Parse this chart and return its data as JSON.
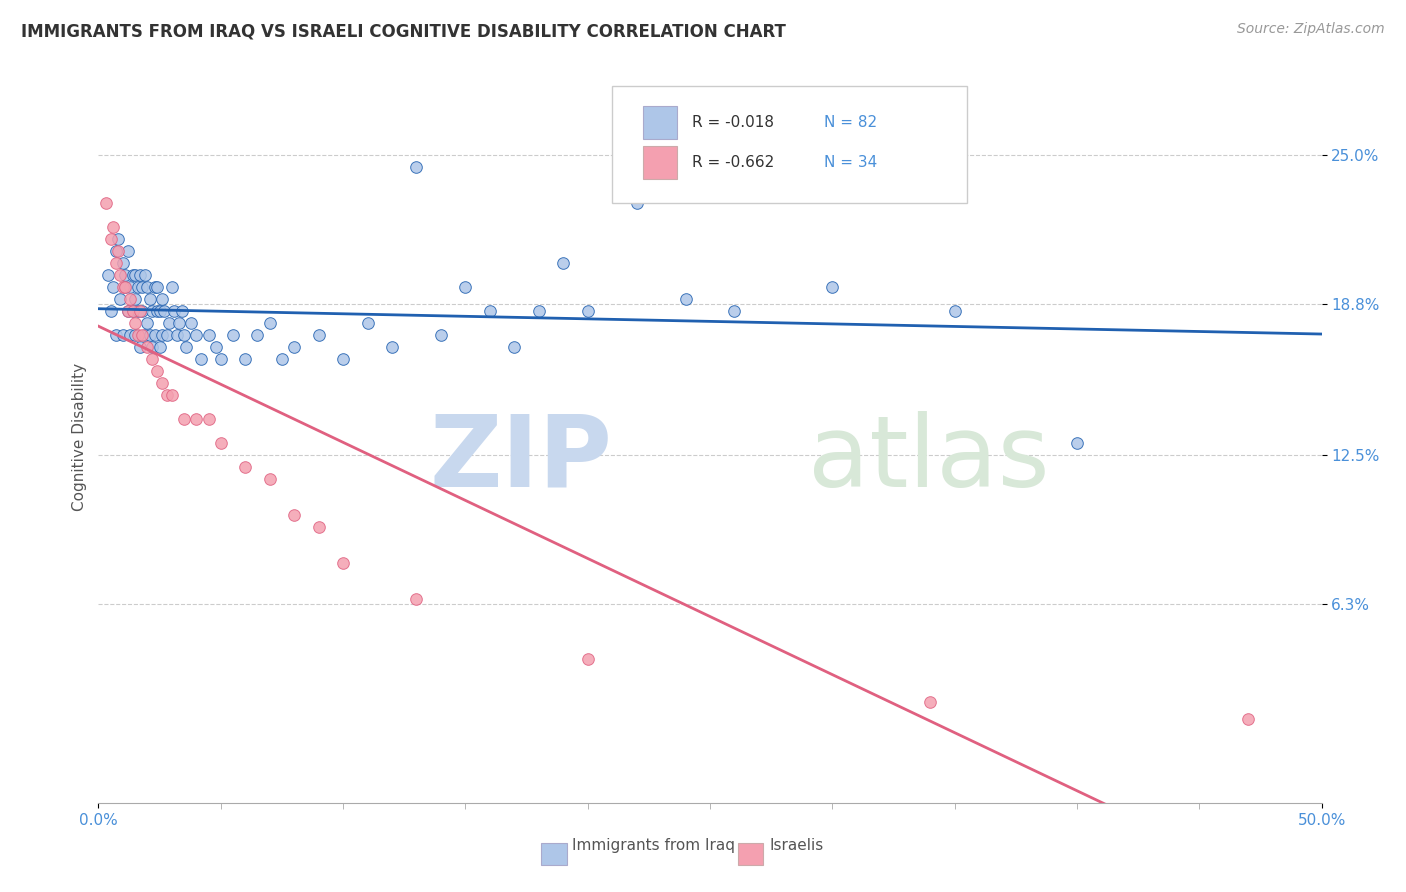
{
  "title": "IMMIGRANTS FROM IRAQ VS ISRAELI COGNITIVE DISABILITY CORRELATION CHART",
  "source_text": "Source: ZipAtlas.com",
  "ylabel": "Cognitive Disability",
  "xlim": [
    0.0,
    0.5
  ],
  "ylim": [
    -0.02,
    0.285
  ],
  "grid_color": "#cccccc",
  "background_color": "#ffffff",
  "watermark_zip": "ZIP",
  "watermark_atlas": "atlas",
  "legend_labels": [
    "Immigrants from Iraq",
    "Israelis"
  ],
  "series1_R": "-0.018",
  "series1_N": "82",
  "series2_R": "-0.662",
  "series2_N": "34",
  "series1_color": "#aec6e8",
  "series2_color": "#f4a0b0",
  "series1_line_color": "#2060b0",
  "series2_line_color": "#e06080",
  "ytick_vals": [
    0.063,
    0.125,
    0.188,
    0.25
  ],
  "ytick_labels": [
    "6.3%",
    "12.5%",
    "18.8%",
    "25.0%"
  ],
  "series1_points_x": [
    0.004,
    0.005,
    0.006,
    0.007,
    0.007,
    0.008,
    0.009,
    0.01,
    0.01,
    0.011,
    0.011,
    0.012,
    0.012,
    0.013,
    0.013,
    0.014,
    0.014,
    0.015,
    0.015,
    0.015,
    0.016,
    0.016,
    0.017,
    0.017,
    0.018,
    0.018,
    0.019,
    0.019,
    0.02,
    0.02,
    0.021,
    0.021,
    0.022,
    0.022,
    0.023,
    0.023,
    0.024,
    0.024,
    0.025,
    0.025,
    0.026,
    0.026,
    0.027,
    0.028,
    0.029,
    0.03,
    0.031,
    0.032,
    0.033,
    0.034,
    0.035,
    0.036,
    0.038,
    0.04,
    0.042,
    0.045,
    0.048,
    0.05,
    0.055,
    0.06,
    0.065,
    0.07,
    0.075,
    0.08,
    0.09,
    0.1,
    0.11,
    0.12,
    0.13,
    0.14,
    0.15,
    0.16,
    0.17,
    0.18,
    0.19,
    0.2,
    0.22,
    0.24,
    0.26,
    0.3,
    0.35,
    0.4
  ],
  "series1_points_y": [
    0.2,
    0.185,
    0.195,
    0.175,
    0.21,
    0.215,
    0.19,
    0.205,
    0.175,
    0.195,
    0.2,
    0.185,
    0.21,
    0.195,
    0.175,
    0.2,
    0.185,
    0.2,
    0.19,
    0.175,
    0.195,
    0.185,
    0.2,
    0.17,
    0.195,
    0.185,
    0.2,
    0.175,
    0.195,
    0.18,
    0.19,
    0.175,
    0.185,
    0.17,
    0.195,
    0.175,
    0.185,
    0.195,
    0.185,
    0.17,
    0.19,
    0.175,
    0.185,
    0.175,
    0.18,
    0.195,
    0.185,
    0.175,
    0.18,
    0.185,
    0.175,
    0.17,
    0.18,
    0.175,
    0.165,
    0.175,
    0.17,
    0.165,
    0.175,
    0.165,
    0.175,
    0.18,
    0.165,
    0.17,
    0.175,
    0.165,
    0.18,
    0.17,
    0.245,
    0.175,
    0.195,
    0.185,
    0.17,
    0.185,
    0.205,
    0.185,
    0.23,
    0.19,
    0.185,
    0.195,
    0.185,
    0.13
  ],
  "series2_points_x": [
    0.003,
    0.005,
    0.006,
    0.007,
    0.008,
    0.009,
    0.01,
    0.011,
    0.012,
    0.013,
    0.014,
    0.015,
    0.016,
    0.017,
    0.018,
    0.02,
    0.022,
    0.024,
    0.026,
    0.028,
    0.03,
    0.035,
    0.04,
    0.045,
    0.05,
    0.06,
    0.07,
    0.08,
    0.09,
    0.1,
    0.13,
    0.2,
    0.34,
    0.47
  ],
  "series2_points_y": [
    0.23,
    0.215,
    0.22,
    0.205,
    0.21,
    0.2,
    0.195,
    0.195,
    0.185,
    0.19,
    0.185,
    0.18,
    0.175,
    0.185,
    0.175,
    0.17,
    0.165,
    0.16,
    0.155,
    0.15,
    0.15,
    0.14,
    0.14,
    0.14,
    0.13,
    0.12,
    0.115,
    0.1,
    0.095,
    0.08,
    0.065,
    0.04,
    0.022,
    0.015
  ],
  "title_fontsize": 12,
  "tick_fontsize": 11,
  "source_fontsize": 10
}
